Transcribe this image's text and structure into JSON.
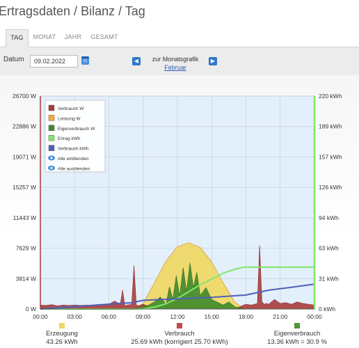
{
  "header": {
    "title": "Ertragsdaten / Bilanz / Tag"
  },
  "tabs": [
    {
      "label": "TAG",
      "active": true
    },
    {
      "label": "MONAT",
      "active": false
    },
    {
      "label": "JAHR",
      "active": false
    },
    {
      "label": "GESAMT",
      "active": false
    }
  ],
  "toolbar": {
    "date_label": "Datum",
    "date_value": "09.02.2022",
    "calendar_icon": "calendar-icon",
    "month_label": "zur Monatsgrafik",
    "month_link": "Februar",
    "prev_icon": "arrow-left-icon",
    "next_icon": "arrow-right-icon"
  },
  "chart_data": {
    "type": "area",
    "y_left_ticks": [
      "0 W",
      "3814 W",
      "7629 W",
      "11443 W",
      "15257 W",
      "19071 W",
      "22886 W",
      "26700 W"
    ],
    "y_left_range": [
      0,
      26700
    ],
    "y_right_ticks": [
      "0 kWh",
      "31 kWh",
      "63 kWh",
      "94 kWh",
      "126 kWh",
      "157 kWh",
      "189 kWh",
      "220 kWh"
    ],
    "y_right_range": [
      0,
      220
    ],
    "x_ticks": [
      "00:00",
      "03:00",
      "06:00",
      "09:00",
      "12:00",
      "15:00",
      "18:00",
      "21:00",
      "00:00"
    ],
    "x_range_hours": [
      0,
      24
    ],
    "grid": true,
    "legend_position": "top-left",
    "legend": [
      {
        "label": "Verbrauch W",
        "color": "#a83c3c",
        "kind": "swatch"
      },
      {
        "label": "Leistung W",
        "color": "#f2a63a",
        "kind": "swatch"
      },
      {
        "label": "Eigenverbrauch W",
        "color": "#3e8a2a",
        "kind": "swatch"
      },
      {
        "label": "Ertrag kWh",
        "color": "#7ee86a",
        "kind": "swatch"
      },
      {
        "label": "Verbrauch kWh",
        "color": "#5060b8",
        "kind": "swatch"
      },
      {
        "label": "Alle einblenden",
        "color": "#4a90d9",
        "kind": "eye"
      },
      {
        "label": "Alle ausblenden",
        "color": "#4a90d9",
        "kind": "eye"
      }
    ],
    "series": [
      {
        "name": "Leistung W",
        "color": "#f0d760",
        "axis": "left",
        "x": [
          8.2,
          9,
          10,
          11,
          12,
          13,
          14,
          15,
          16,
          17,
          17.8
        ],
        "y": [
          0,
          700,
          3300,
          6000,
          7800,
          8300,
          7700,
          5900,
          3300,
          900,
          0
        ]
      },
      {
        "name": "Verbrauch W",
        "color": "#a83c3c",
        "axis": "left",
        "x": [
          0,
          0.5,
          1,
          1.5,
          2,
          2.5,
          3,
          3.5,
          4,
          4.5,
          5,
          5.5,
          6,
          6.5,
          7,
          7.2,
          7.4,
          7.6,
          8,
          8.2,
          8.4,
          8.6,
          8.8,
          9,
          10,
          11,
          12,
          13,
          14,
          15,
          16,
          17,
          17.8,
          18,
          18.5,
          19,
          19.2,
          19.4,
          19.6,
          19.8,
          20,
          20.5,
          21,
          21.5,
          22,
          22.5,
          23,
          23.5,
          24
        ],
        "y": [
          500,
          450,
          550,
          400,
          500,
          450,
          500,
          450,
          500,
          450,
          550,
          500,
          600,
          1000,
          600,
          2400,
          400,
          500,
          600,
          5500,
          500,
          400,
          500,
          600,
          0,
          0,
          0,
          0,
          0,
          0,
          0,
          0,
          500,
          600,
          500,
          700,
          8000,
          900,
          600,
          700,
          600,
          1200,
          700,
          800,
          600,
          900,
          700,
          600,
          500
        ]
      },
      {
        "name": "Eigenverbrauch W",
        "color": "#3e8a2a",
        "axis": "left",
        "x": [
          8.2,
          9,
          9.5,
          10,
          10.5,
          11,
          11.3,
          11.6,
          11.9,
          12.2,
          12.5,
          12.8,
          13.1,
          13.4,
          13.7,
          14,
          14.5,
          15,
          16,
          16.5,
          17,
          17.8
        ],
        "y": [
          0,
          300,
          500,
          900,
          1500,
          600,
          2800,
          1200,
          4200,
          1600,
          5200,
          2200,
          5800,
          2700,
          4600,
          1700,
          2700,
          1200,
          500,
          900,
          300,
          0
        ]
      },
      {
        "name": "Ertrag kWh",
        "color": "#7ee86a",
        "axis": "right",
        "x": [
          0,
          8.2,
          9,
          10,
          11,
          12,
          13,
          14,
          15,
          16,
          17,
          17.8,
          24
        ],
        "y": [
          0,
          0,
          0.3,
          2,
          5.5,
          11,
          18,
          25,
          31,
          37,
          41,
          43.26,
          43.26
        ]
      },
      {
        "name": "Verbrauch kWh",
        "color": "#5060b8",
        "axis": "right",
        "x": [
          0,
          3,
          6,
          8,
          9,
          12,
          15,
          18,
          20,
          22,
          24
        ],
        "y": [
          0,
          2.5,
          5,
          6.5,
          9,
          10.5,
          12,
          14.5,
          19.5,
          22.5,
          25.7
        ]
      }
    ],
    "totals": [
      {
        "label": "Erzeugung",
        "value": "43.26 kWh",
        "color": "#f0d760"
      },
      {
        "label": "Verbrauch",
        "value": "25.69 kWh (korrigiert 25.70 kWh)",
        "color": "#c24a4a"
      },
      {
        "label": "Eigenverbrauch",
        "value": "13.36 kWh = 30.9 %",
        "color": "#4e9a36"
      }
    ]
  }
}
